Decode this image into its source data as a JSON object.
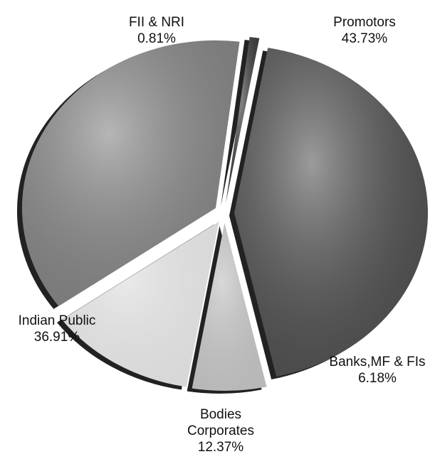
{
  "chart_data": {
    "type": "pie",
    "categories": [
      "Promotors",
      "Banks,MF & FIs",
      "Bodies Corporates",
      "Indian Public",
      "FII & NRI"
    ],
    "values": [
      43.73,
      6.18,
      12.37,
      36.91,
      0.81
    ],
    "value_labels": [
      "43.73%",
      "6.18%",
      "12.37%",
      "36.91%",
      "0.81%"
    ],
    "colors": [
      "#4a4a4a",
      "#b8b8b8",
      "#d8d8d8",
      "#7a7a7a",
      "#3a3a3a"
    ]
  }
}
